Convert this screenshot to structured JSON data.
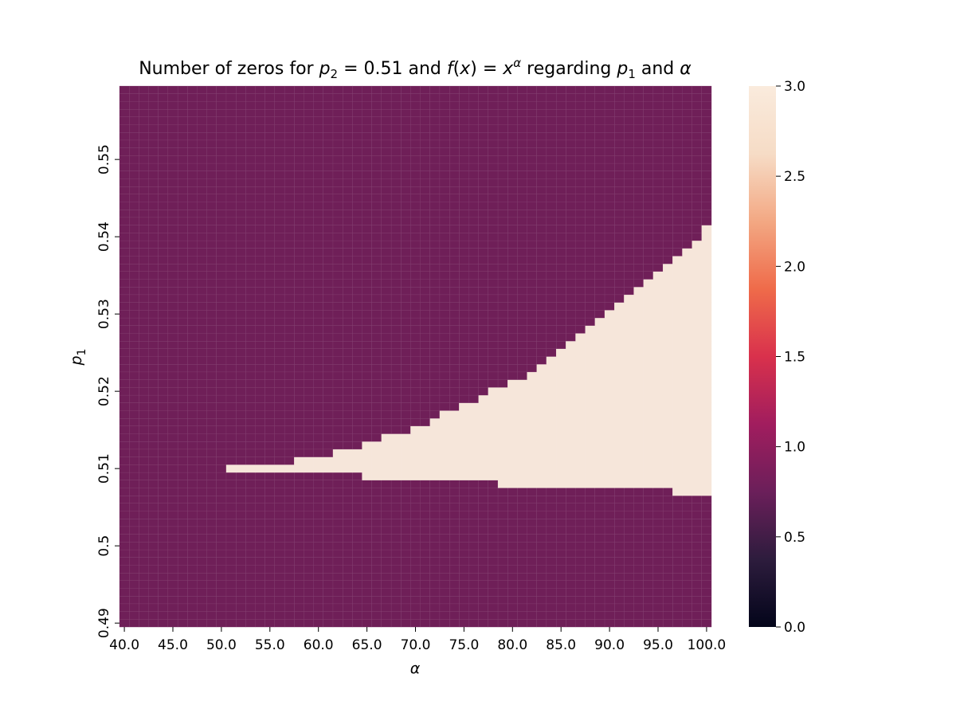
{
  "chart_data": {
    "type": "heatmap",
    "title_parts": {
      "t1": "Number of zeros for ",
      "p": "p",
      "sub2": "2",
      "t2": " = 0.51 and ",
      "f": "f",
      "t3": "(",
      "x1": "x",
      "t4": ") = ",
      "x2": "x",
      "sup_alpha": "α",
      "t5": " regarding ",
      "p_b": "p",
      "sub1": "1",
      "t6": " and ",
      "alpha": "α"
    },
    "xlabel": "α",
    "ylabel": "p",
    "ylabel_sub": "1",
    "x": {
      "start": 40,
      "end": 100,
      "step": 1
    },
    "y": {
      "start": 0.49,
      "end": 0.559,
      "step": 0.001
    },
    "x_tick_labels": [
      "40.0",
      "45.0",
      "50.0",
      "55.0",
      "60.0",
      "65.0",
      "70.0",
      "75.0",
      "80.0",
      "85.0",
      "90.0",
      "95.0",
      "100.0"
    ],
    "y_tick_labels": [
      "0.49",
      "0.5",
      "0.51",
      "0.52",
      "0.53",
      "0.54",
      "0.55"
    ],
    "colorbar": {
      "vmin": 0.0,
      "vmax": 3.0,
      "tick_labels": [
        "0.0",
        "0.5",
        "1.0",
        "1.5",
        "2.0",
        "2.5",
        "3.0"
      ]
    },
    "background_value": 1,
    "region_value": 3,
    "region_description_by_column": [
      {
        "alpha_from": 51,
        "alpha_to": 57,
        "p1_from": 0.51,
        "p1_to": 0.51
      },
      {
        "alpha_from": 58,
        "alpha_to": 61,
        "p1_from": 0.51,
        "p1_to": 0.511
      },
      {
        "alpha_from": 62,
        "alpha_to": 64,
        "p1_from": 0.51,
        "p1_to": 0.512
      },
      {
        "alpha_from": 65,
        "alpha_to": 66,
        "p1_from": 0.509,
        "p1_to": 0.513
      },
      {
        "alpha_from": 67,
        "alpha_to": 69,
        "p1_from": 0.509,
        "p1_to": 0.514
      },
      {
        "alpha_from": 70,
        "alpha_to": 71,
        "p1_from": 0.509,
        "p1_to": 0.515
      },
      {
        "alpha_from": 72,
        "alpha_to": 72,
        "p1_from": 0.509,
        "p1_to": 0.516
      },
      {
        "alpha_from": 73,
        "alpha_to": 74,
        "p1_from": 0.509,
        "p1_to": 0.517
      },
      {
        "alpha_from": 75,
        "alpha_to": 76,
        "p1_from": 0.509,
        "p1_to": 0.518
      },
      {
        "alpha_from": 77,
        "alpha_to": 77,
        "p1_from": 0.509,
        "p1_to": 0.519
      },
      {
        "alpha_from": 78,
        "alpha_to": 78,
        "p1_from": 0.509,
        "p1_to": 0.52
      },
      {
        "alpha_from": 79,
        "alpha_to": 79,
        "p1_from": 0.508,
        "p1_to": 0.52
      },
      {
        "alpha_from": 80,
        "alpha_to": 81,
        "p1_from": 0.508,
        "p1_to": 0.521
      },
      {
        "alpha_from": 82,
        "alpha_to": 82,
        "p1_from": 0.508,
        "p1_to": 0.522
      },
      {
        "alpha_from": 83,
        "alpha_to": 83,
        "p1_from": 0.508,
        "p1_to": 0.523
      },
      {
        "alpha_from": 84,
        "alpha_to": 84,
        "p1_from": 0.508,
        "p1_to": 0.524
      },
      {
        "alpha_from": 85,
        "alpha_to": 85,
        "p1_from": 0.508,
        "p1_to": 0.525
      },
      {
        "alpha_from": 86,
        "alpha_to": 86,
        "p1_from": 0.508,
        "p1_to": 0.526
      },
      {
        "alpha_from": 87,
        "alpha_to": 87,
        "p1_from": 0.508,
        "p1_to": 0.527
      },
      {
        "alpha_from": 88,
        "alpha_to": 88,
        "p1_from": 0.508,
        "p1_to": 0.528
      },
      {
        "alpha_from": 89,
        "alpha_to": 89,
        "p1_from": 0.508,
        "p1_to": 0.529
      },
      {
        "alpha_from": 90,
        "alpha_to": 90,
        "p1_from": 0.508,
        "p1_to": 0.53
      },
      {
        "alpha_from": 91,
        "alpha_to": 91,
        "p1_from": 0.508,
        "p1_to": 0.531
      },
      {
        "alpha_from": 92,
        "alpha_to": 92,
        "p1_from": 0.508,
        "p1_to": 0.532
      },
      {
        "alpha_from": 93,
        "alpha_to": 93,
        "p1_from": 0.508,
        "p1_to": 0.533
      },
      {
        "alpha_from": 94,
        "alpha_to": 94,
        "p1_from": 0.508,
        "p1_to": 0.534
      },
      {
        "alpha_from": 95,
        "alpha_to": 95,
        "p1_from": 0.508,
        "p1_to": 0.535
      },
      {
        "alpha_from": 96,
        "alpha_to": 96,
        "p1_from": 0.508,
        "p1_to": 0.536
      },
      {
        "alpha_from": 97,
        "alpha_to": 97,
        "p1_from": 0.507,
        "p1_to": 0.537
      },
      {
        "alpha_from": 98,
        "alpha_to": 98,
        "p1_from": 0.507,
        "p1_to": 0.538
      },
      {
        "alpha_from": 99,
        "alpha_to": 99,
        "p1_from": 0.507,
        "p1_to": 0.539
      },
      {
        "alpha_from": 100,
        "alpha_to": 100,
        "p1_from": 0.507,
        "p1_to": 0.541
      }
    ],
    "colors": {
      "value_1": "#6f1f58",
      "value_3": "#f6e6da",
      "cell_edge": "#8a4a78"
    },
    "colormap_stops": [
      "#03051a",
      "#2d1c3d",
      "#6b1f5a",
      "#a11d5e",
      "#d9314c",
      "#ef6b4a",
      "#f3a883",
      "#f6dcc6",
      "#faebdd"
    ]
  }
}
